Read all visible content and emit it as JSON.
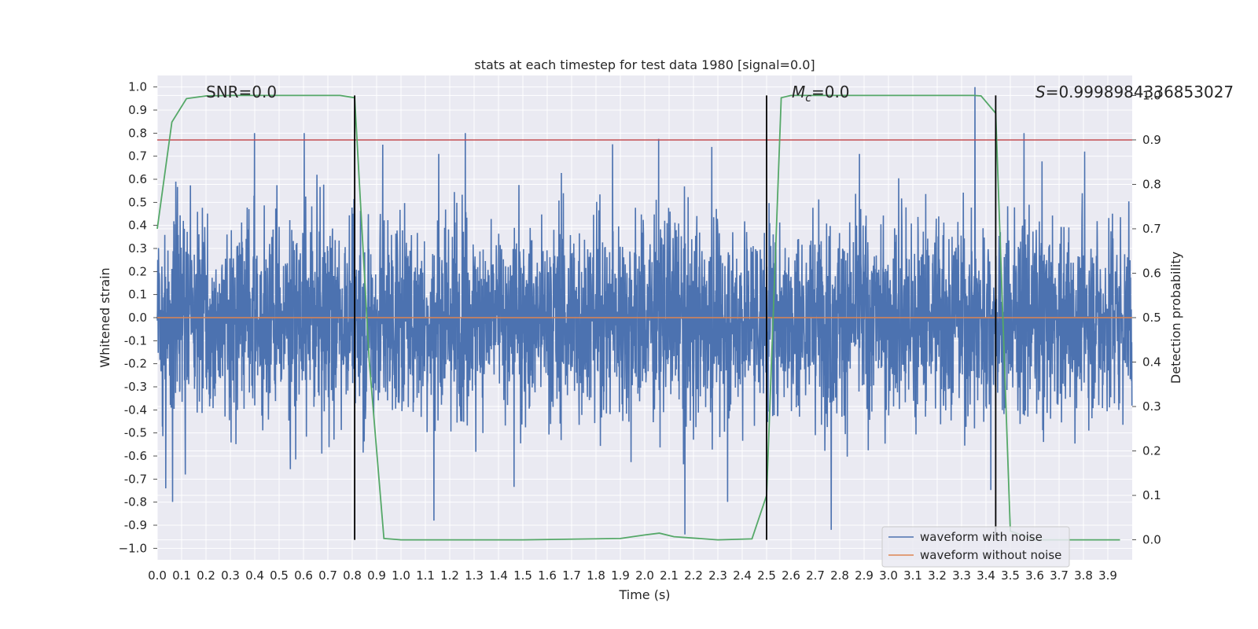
{
  "chart_data": {
    "type": "line",
    "title": "stats at each timestep for test data 1980 [signal=0.0]",
    "xlabel": "Time (s)",
    "ylabel": "Whitened strain",
    "y2label": "Detection probability",
    "xlim": [
      0.0,
      4.0
    ],
    "ylim": [
      -1.05,
      1.05
    ],
    "y2lim": [
      -0.045,
      1.045
    ],
    "xticks": [
      "0.0",
      "0.1",
      "0.2",
      "0.3",
      "0.4",
      "0.5",
      "0.6",
      "0.7",
      "0.8",
      "0.9",
      "1.0",
      "1.1",
      "1.2",
      "1.3",
      "1.4",
      "1.5",
      "1.6",
      "1.7",
      "1.8",
      "1.9",
      "2.0",
      "2.1",
      "2.2",
      "2.3",
      "2.4",
      "2.5",
      "2.6",
      "2.7",
      "2.8",
      "2.9",
      "3.0",
      "3.1",
      "3.2",
      "3.3",
      "3.4",
      "3.5",
      "3.6",
      "3.7",
      "3.8",
      "3.9"
    ],
    "yticks": [
      "1.0",
      "0.9",
      "0.8",
      "0.7",
      "0.6",
      "0.5",
      "0.4",
      "0.3",
      "0.2",
      "0.1",
      "0.0",
      "-0.1",
      "-0.2",
      "-0.3",
      "-0.4",
      "-0.5",
      "-0.6",
      "-0.7",
      "-0.8",
      "-0.9",
      "−1.0"
    ],
    "y2ticks": [
      "1.0",
      "0.9",
      "0.8",
      "0.7",
      "0.6",
      "0.5",
      "0.4",
      "0.3",
      "0.2",
      "0.1",
      "0.0"
    ],
    "grid": true,
    "legend": {
      "position": "lower-right",
      "entries": [
        "waveform with noise",
        "waveform without noise"
      ]
    },
    "annotations": {
      "snr": "SNR=0.0",
      "mc_symbol": "M",
      "mc_subscript": "c",
      "mc_value": "=0.0",
      "s_symbol": "S",
      "s_value": "=0.9998984336853027"
    },
    "series": [
      {
        "name": "waveform with noise",
        "color": "#4c72b0",
        "style": "noise",
        "sample_count": 4000,
        "sample_envelope_min": -0.94,
        "sample_envelope_max": 1.0,
        "peak_samples": [
          {
            "x": 0.035,
            "y": -0.74
          },
          {
            "x": 0.115,
            "y": -0.68
          },
          {
            "x": 0.925,
            "y": 0.75
          },
          {
            "x": 1.135,
            "y": -0.88
          },
          {
            "x": 1.155,
            "y": 0.71
          },
          {
            "x": 2.165,
            "y": -0.94
          },
          {
            "x": 2.275,
            "y": 0.74
          },
          {
            "x": 2.765,
            "y": -0.92
          },
          {
            "x": 3.355,
            "y": 1.0
          },
          {
            "x": 3.805,
            "y": 0.72
          }
        ]
      },
      {
        "name": "waveform without noise",
        "color": "#dd8452",
        "y": 0.0
      },
      {
        "name": "Detection probability",
        "axis": "right",
        "color": "#55a868",
        "x": [
          0.0,
          0.06,
          0.12,
          0.2,
          0.3,
          0.5,
          0.75,
          0.81,
          0.87,
          0.93,
          1.0,
          1.5,
          1.9,
          2.0,
          2.06,
          2.12,
          2.3,
          2.44,
          2.5,
          2.56,
          2.6,
          3.0,
          3.35,
          3.38,
          3.44,
          3.5,
          3.6,
          3.95
        ],
        "y": [
          0.7,
          0.94,
          0.993,
          0.999,
          1.0,
          1.0,
          1.0,
          0.995,
          0.4,
          0.003,
          0.0,
          0.0,
          0.003,
          0.011,
          0.015,
          0.007,
          0.0,
          0.002,
          0.1,
          0.995,
          1.0,
          1.0,
          1.0,
          0.999,
          0.96,
          0.02,
          0.0,
          0.0
        ]
      },
      {
        "name": "threshold",
        "axis": "right",
        "color": "#c44e52",
        "y": 0.9
      }
    ],
    "vertical_lines": [
      {
        "x": 0.81,
        "y_from": 0.0,
        "y_to": 1.0,
        "axis": "right",
        "color": "#000000"
      },
      {
        "x": 2.5,
        "y_from": 0.0,
        "y_to": 1.0,
        "axis": "right",
        "color": "#000000"
      },
      {
        "x": 3.44,
        "y_from": 0.0,
        "y_to": 1.0,
        "axis": "right",
        "color": "#000000"
      }
    ]
  }
}
